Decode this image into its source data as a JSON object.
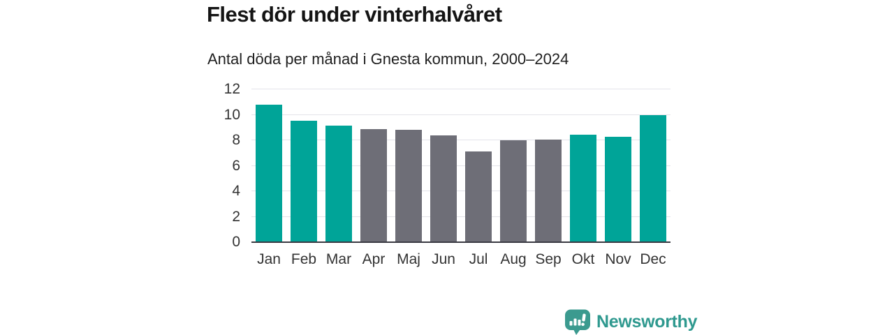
{
  "header": {
    "title": "Flest dör under vinterhalvåret",
    "subtitle": "Antal döda per månad i Gnesta kommun, 2000–2024"
  },
  "chart_data": {
    "type": "bar",
    "title": "Flest dör under vinterhalvåret",
    "subtitle": "Antal döda per månad i Gnesta kommun, 2000–2024",
    "categories": [
      "Jan",
      "Feb",
      "Mar",
      "Apr",
      "Maj",
      "Jun",
      "Jul",
      "Aug",
      "Sep",
      "Okt",
      "Nov",
      "Dec"
    ],
    "values": [
      10.8,
      9.55,
      9.15,
      8.9,
      8.8,
      8.4,
      7.1,
      8.0,
      8.05,
      8.45,
      8.25,
      10.0
    ],
    "highlighted_categories": [
      "Jan",
      "Feb",
      "Mar",
      "Okt",
      "Nov",
      "Dec"
    ],
    "xlabel": "",
    "ylabel": "",
    "ylim": [
      0,
      12
    ],
    "y_ticks": [
      0,
      2,
      4,
      6,
      8,
      10,
      12
    ],
    "grid": true,
    "legend": false,
    "colors": {
      "highlight": "#00a498",
      "default": "#6e6e77",
      "gridline": "#e3e3e9",
      "axis_line": "#3a3a42",
      "tick_text": "#333333"
    }
  },
  "footer": {
    "brand": "Newsworthy",
    "brand_color": "#2f998f",
    "logo_icon": "bar-chart-speech-bubble-icon",
    "logo_icon_color": "#3b9a8f"
  }
}
